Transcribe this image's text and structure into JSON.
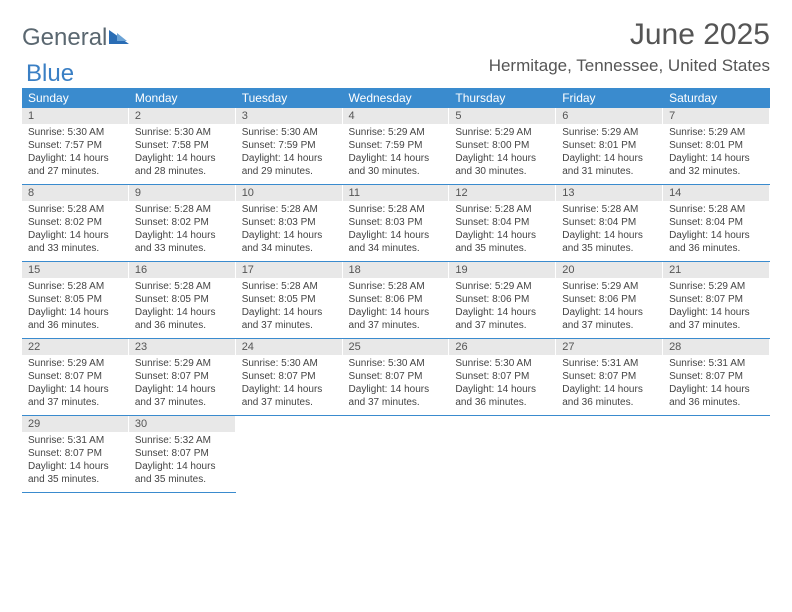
{
  "logo": {
    "part1": "General",
    "part2": "Blue"
  },
  "title": "June 2025",
  "location": "Hermitage, Tennessee, United States",
  "colors": {
    "header_bg": "#3a8bce",
    "header_fg": "#ffffff",
    "daynum_bg": "#e8e8e8",
    "border": "#3a8bce",
    "logo_gray": "#5a6770",
    "logo_blue": "#3a7fc4"
  },
  "weekdays": [
    "Sunday",
    "Monday",
    "Tuesday",
    "Wednesday",
    "Thursday",
    "Friday",
    "Saturday"
  ],
  "weeks": [
    [
      {
        "n": "1",
        "sr": "5:30 AM",
        "ss": "7:57 PM",
        "dl": "14 hours and 27 minutes."
      },
      {
        "n": "2",
        "sr": "5:30 AM",
        "ss": "7:58 PM",
        "dl": "14 hours and 28 minutes."
      },
      {
        "n": "3",
        "sr": "5:30 AM",
        "ss": "7:59 PM",
        "dl": "14 hours and 29 minutes."
      },
      {
        "n": "4",
        "sr": "5:29 AM",
        "ss": "7:59 PM",
        "dl": "14 hours and 30 minutes."
      },
      {
        "n": "5",
        "sr": "5:29 AM",
        "ss": "8:00 PM",
        "dl": "14 hours and 30 minutes."
      },
      {
        "n": "6",
        "sr": "5:29 AM",
        "ss": "8:01 PM",
        "dl": "14 hours and 31 minutes."
      },
      {
        "n": "7",
        "sr": "5:29 AM",
        "ss": "8:01 PM",
        "dl": "14 hours and 32 minutes."
      }
    ],
    [
      {
        "n": "8",
        "sr": "5:28 AM",
        "ss": "8:02 PM",
        "dl": "14 hours and 33 minutes."
      },
      {
        "n": "9",
        "sr": "5:28 AM",
        "ss": "8:02 PM",
        "dl": "14 hours and 33 minutes."
      },
      {
        "n": "10",
        "sr": "5:28 AM",
        "ss": "8:03 PM",
        "dl": "14 hours and 34 minutes."
      },
      {
        "n": "11",
        "sr": "5:28 AM",
        "ss": "8:03 PM",
        "dl": "14 hours and 34 minutes."
      },
      {
        "n": "12",
        "sr": "5:28 AM",
        "ss": "8:04 PM",
        "dl": "14 hours and 35 minutes."
      },
      {
        "n": "13",
        "sr": "5:28 AM",
        "ss": "8:04 PM",
        "dl": "14 hours and 35 minutes."
      },
      {
        "n": "14",
        "sr": "5:28 AM",
        "ss": "8:04 PM",
        "dl": "14 hours and 36 minutes."
      }
    ],
    [
      {
        "n": "15",
        "sr": "5:28 AM",
        "ss": "8:05 PM",
        "dl": "14 hours and 36 minutes."
      },
      {
        "n": "16",
        "sr": "5:28 AM",
        "ss": "8:05 PM",
        "dl": "14 hours and 36 minutes."
      },
      {
        "n": "17",
        "sr": "5:28 AM",
        "ss": "8:05 PM",
        "dl": "14 hours and 37 minutes."
      },
      {
        "n": "18",
        "sr": "5:28 AM",
        "ss": "8:06 PM",
        "dl": "14 hours and 37 minutes."
      },
      {
        "n": "19",
        "sr": "5:29 AM",
        "ss": "8:06 PM",
        "dl": "14 hours and 37 minutes."
      },
      {
        "n": "20",
        "sr": "5:29 AM",
        "ss": "8:06 PM",
        "dl": "14 hours and 37 minutes."
      },
      {
        "n": "21",
        "sr": "5:29 AM",
        "ss": "8:07 PM",
        "dl": "14 hours and 37 minutes."
      }
    ],
    [
      {
        "n": "22",
        "sr": "5:29 AM",
        "ss": "8:07 PM",
        "dl": "14 hours and 37 minutes."
      },
      {
        "n": "23",
        "sr": "5:29 AM",
        "ss": "8:07 PM",
        "dl": "14 hours and 37 minutes."
      },
      {
        "n": "24",
        "sr": "5:30 AM",
        "ss": "8:07 PM",
        "dl": "14 hours and 37 minutes."
      },
      {
        "n": "25",
        "sr": "5:30 AM",
        "ss": "8:07 PM",
        "dl": "14 hours and 37 minutes."
      },
      {
        "n": "26",
        "sr": "5:30 AM",
        "ss": "8:07 PM",
        "dl": "14 hours and 36 minutes."
      },
      {
        "n": "27",
        "sr": "5:31 AM",
        "ss": "8:07 PM",
        "dl": "14 hours and 36 minutes."
      },
      {
        "n": "28",
        "sr": "5:31 AM",
        "ss": "8:07 PM",
        "dl": "14 hours and 36 minutes."
      }
    ],
    [
      {
        "n": "29",
        "sr": "5:31 AM",
        "ss": "8:07 PM",
        "dl": "14 hours and 35 minutes."
      },
      {
        "n": "30",
        "sr": "5:32 AM",
        "ss": "8:07 PM",
        "dl": "14 hours and 35 minutes."
      },
      null,
      null,
      null,
      null,
      null
    ]
  ],
  "labels": {
    "sunrise": "Sunrise:",
    "sunset": "Sunset:",
    "daylight": "Daylight:"
  }
}
